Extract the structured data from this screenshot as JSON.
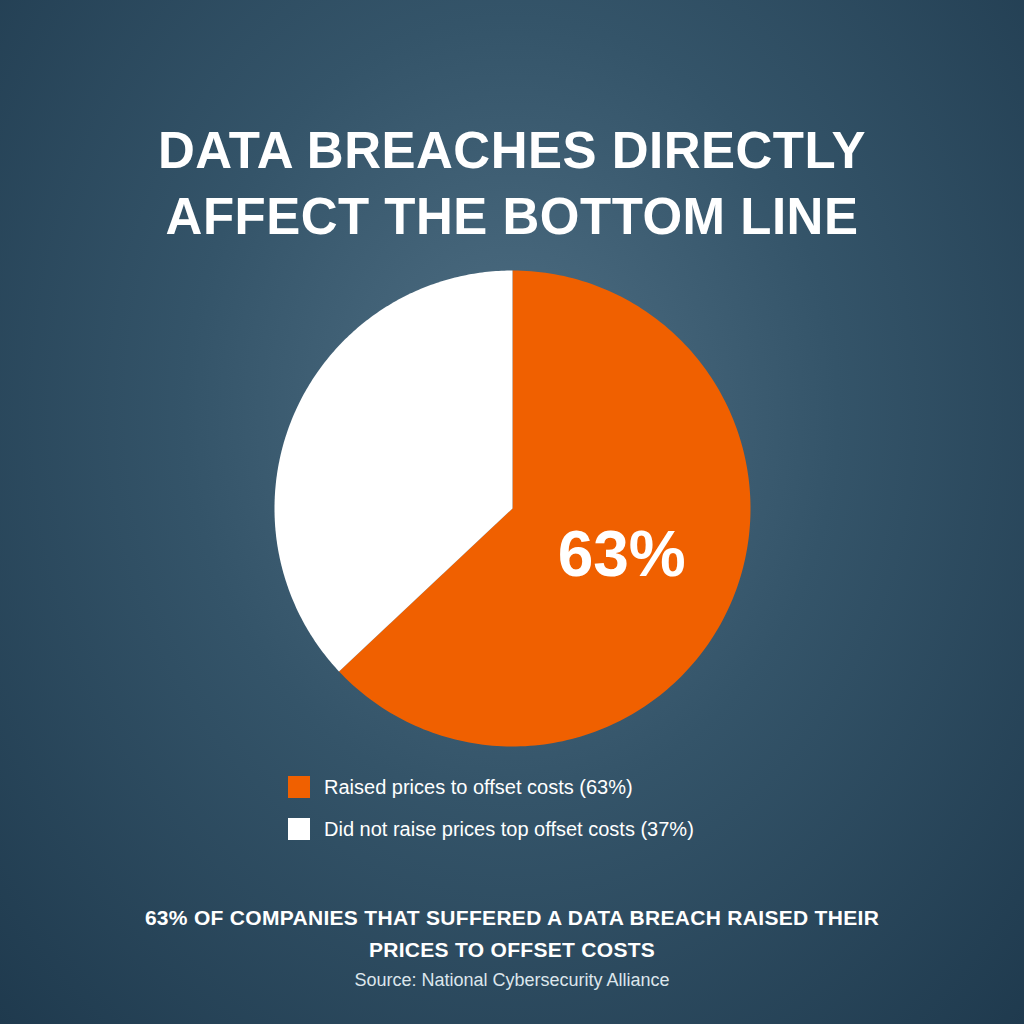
{
  "chart_data": {
    "type": "pie",
    "title": "DATA BREACHES DIRECTLY AFFECT THE BOTTOM LINE",
    "categories": [
      "Raised prices to offset costs (63%)",
      "Did not raise prices top offset costs (37%)"
    ],
    "values": [
      63,
      37
    ],
    "value_labels": [
      "63%",
      null
    ],
    "data_labels": true,
    "colors": [
      "#f06000",
      "#ffffff"
    ],
    "legend": "bottom",
    "tick_labels": false,
    "caption": "63% OF COMPANIES THAT SUFFERED A DATA BREACH RAISED THEIR PRICES TO OFFSET COSTS",
    "source": "Source: National Cybersecurity Alliance"
  }
}
